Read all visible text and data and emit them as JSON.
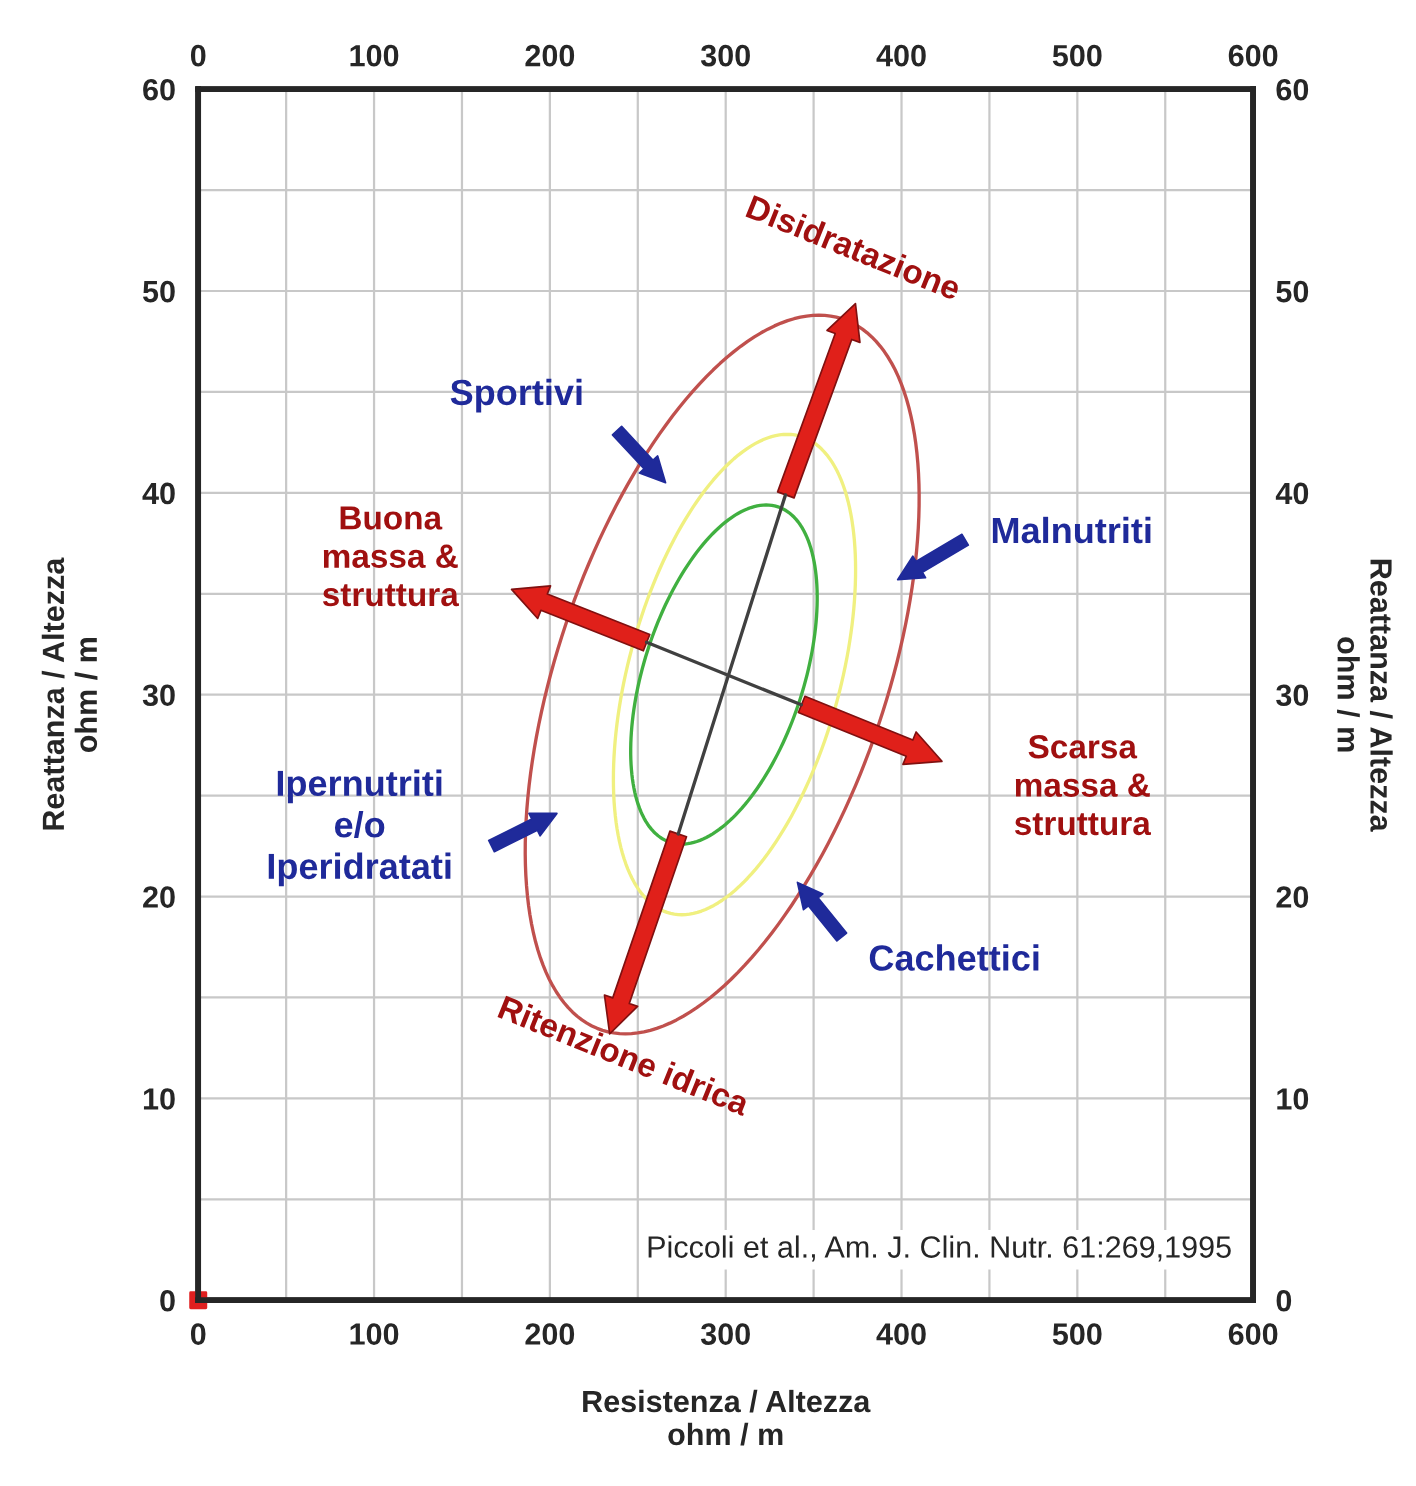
{
  "chart_data": {
    "type": "line",
    "xlabel": "Resistenza / Altezza\nohm / m",
    "ylabel": "Reattanza / Altezza\nohm / m",
    "y2label": "Reattanza / Altezza\nohm / m",
    "xlim": [
      0,
      600
    ],
    "x2lim": [
      0,
      600
    ],
    "ylim": [
      0,
      60
    ],
    "y2lim": [
      0,
      60
    ],
    "xticks": [
      0,
      {
        "value": 50,
        "label": null
      },
      100,
      {
        "value": 150,
        "label": null
      },
      200,
      {
        "value": 250,
        "label": null
      },
      300,
      {
        "value": 350,
        "label": null
      },
      400,
      {
        "value": 450,
        "label": null
      },
      500,
      {
        "value": 550,
        "label": null
      },
      600
    ],
    "x2ticks": [
      0,
      100,
      200,
      300,
      400,
      500,
      600
    ],
    "yticks": [
      0,
      {
        "value": 5,
        "label": null
      },
      10,
      {
        "value": 15,
        "label": null
      },
      20,
      {
        "value": 25,
        "label": null
      },
      30,
      {
        "value": 35,
        "label": null
      },
      40,
      {
        "value": 45,
        "label": null
      },
      50,
      {
        "value": 55,
        "label": null
      },
      60
    ],
    "y2ticks": [
      0,
      10,
      20,
      30,
      40,
      50,
      60
    ],
    "grid": true,
    "series": [
      {
        "color": "#404040",
        "x": [
          273,
          334
        ],
        "values": [
          23.1,
          39.9
        ]
      },
      {
        "color": "#404040",
        "x": [
          255,
          343
        ],
        "values": [
          32.6,
          29.5
        ]
      },
      {
        "type": "scatter",
        "color": "#e02020",
        "marker": "square",
        "x": [
          0
        ],
        "values": [
          0
        ]
      }
    ],
    "annotations": [
      "Disidratazione",
      "Sportivi",
      "Buona\nmassa &\nstruttura",
      "Malnutriti",
      "Scarsa\nmassa &\nstruttura",
      "Ipernutriti\ne/o\nIperidratati",
      "Cachettici",
      "Ritenzione idrica",
      "Piccoli et al., Am. J. Clin. Nutr. 61:269,1995"
    ]
  }
}
